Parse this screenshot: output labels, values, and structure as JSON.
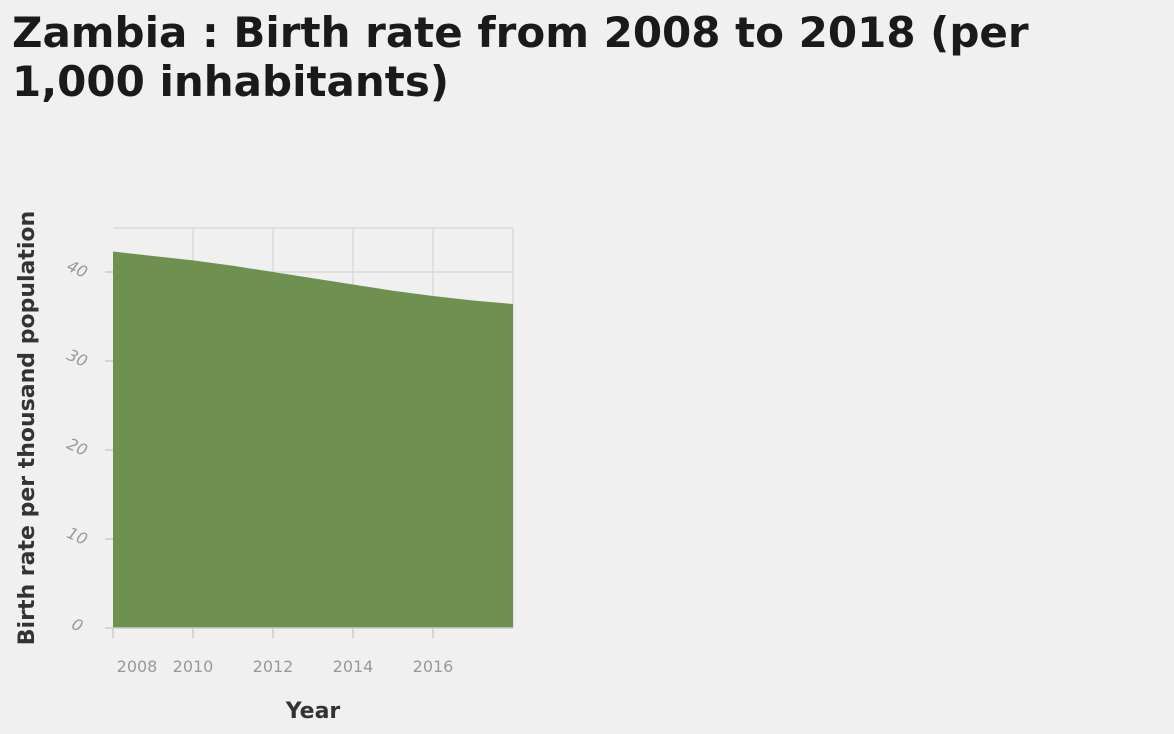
{
  "chart_data": {
    "type": "area",
    "title": "Zambia : Birth rate from 2008 to 2018 (per 1,000 inhabitants)",
    "xlabel": "Year",
    "ylabel": "Birth rate per thousand population",
    "x": [
      2008,
      2009,
      2010,
      2011,
      2012,
      2013,
      2014,
      2015,
      2016,
      2017,
      2018
    ],
    "values": [
      42.3,
      41.8,
      41.3,
      40.7,
      40.0,
      39.3,
      38.6,
      37.9,
      37.3,
      36.8,
      36.4
    ],
    "xlim": [
      2008,
      2018
    ],
    "ylim": [
      0,
      40
    ],
    "x_ticks": [
      "2008",
      "2010",
      "2012",
      "2014",
      "2016"
    ],
    "x_tick_values": [
      2008,
      2010,
      2012,
      2014,
      2016
    ],
    "y_ticks": [
      "0",
      "10",
      "20",
      "30",
      "40"
    ],
    "y_tick_values": [
      0,
      10,
      20,
      30,
      40
    ],
    "grid": true,
    "fill_color": "#6f914f",
    "grid_color": "#d9d9d9"
  }
}
